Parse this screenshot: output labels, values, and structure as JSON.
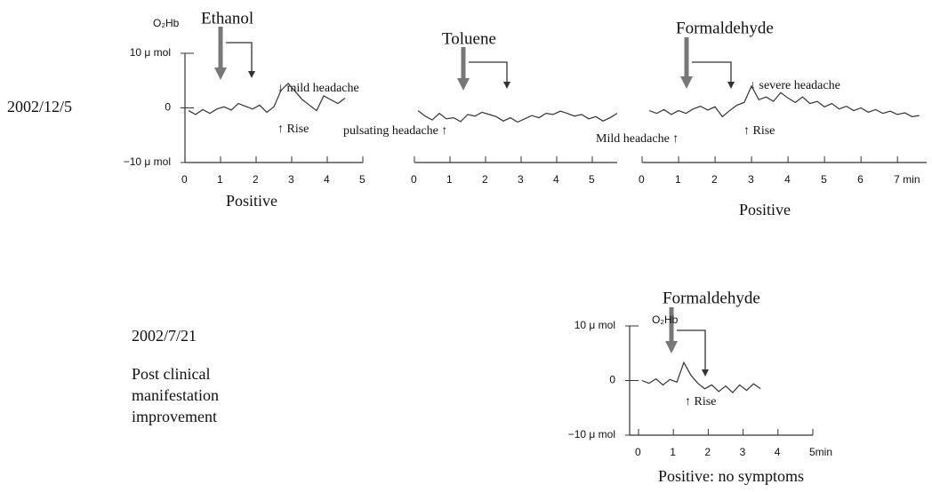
{
  "chart_data": [
    {
      "type": "line",
      "title": "Ethanol",
      "y_label": "O₂Hb",
      "xlabel": "Positive",
      "annotations": [
        "↓ mild headache",
        "↑ Rise"
      ],
      "color": "#333333",
      "x": [
        0.1,
        0.3,
        0.5,
        0.7,
        0.9,
        1.1,
        1.3,
        1.5,
        1.7,
        1.9,
        2.1,
        2.3,
        2.5,
        2.7,
        2.9,
        3.1,
        3.3,
        3.5,
        3.7,
        3.9,
        4.1,
        4.3,
        4.5
      ],
      "values": [
        -0.5,
        -1.2,
        -0.3,
        -1,
        -0.2,
        0.2,
        -0.4,
        0.8,
        0.3,
        -0.2,
        0.5,
        -0.8,
        0.2,
        3.2,
        4.5,
        3,
        1.5,
        0.5,
        -0.5,
        2.2,
        1.5,
        0.8,
        1.8
      ],
      "xlim": [
        0,
        5
      ],
      "xticks": [
        0,
        1,
        2,
        3,
        4,
        5
      ],
      "ylim": [
        -10,
        10
      ],
      "yticks": [
        {
          "value": 10,
          "label": "10 μ mol"
        },
        0,
        {
          "value": -10,
          "label": "−10 μ mol"
        }
      ]
    },
    {
      "type": "line",
      "title": "Toluene",
      "annotations": [
        "pulsating headache ↑"
      ],
      "color": "#333333",
      "x": [
        0.1,
        0.3,
        0.5,
        0.7,
        0.9,
        1.1,
        1.3,
        1.5,
        1.7,
        1.9,
        2.1,
        2.3,
        2.5,
        2.7,
        2.9,
        3.1,
        3.3,
        3.5,
        3.7,
        3.9,
        4.1,
        4.3,
        4.5,
        4.7,
        4.9,
        5.1,
        5.3,
        5.5,
        5.7
      ],
      "values": [
        -0.5,
        -1.5,
        -2.2,
        -1,
        -2,
        -1.8,
        -2.5,
        -1.2,
        -1.5,
        -0.8,
        -1.2,
        -1.6,
        -2.4,
        -1.8,
        -2.6,
        -2,
        -1.4,
        -1.8,
        -1,
        -1.2,
        -0.6,
        -1,
        -1.5,
        -1.2,
        -2,
        -1.6,
        -2.4,
        -1.8,
        -1
      ],
      "xlim": [
        0,
        5.7
      ],
      "xticks": [
        0,
        1,
        2,
        3,
        4,
        5
      ],
      "ylim": [
        -10,
        10
      ]
    },
    {
      "type": "line",
      "title": "Formaldehyde",
      "xlabel": "Positive",
      "annotations": [
        "↓ severe headache",
        "Mild headache ↑",
        "↑ Rise"
      ],
      "color": "#333333",
      "x": [
        0.2,
        0.4,
        0.6,
        0.8,
        1.0,
        1.2,
        1.4,
        1.6,
        1.8,
        2.0,
        2.2,
        2.4,
        2.6,
        2.8,
        3.0,
        3.2,
        3.4,
        3.6,
        3.8,
        4.0,
        4.2,
        4.4,
        4.6,
        4.8,
        5.0,
        5.2,
        5.4,
        5.6,
        5.8,
        6.0,
        6.2,
        6.4,
        6.6,
        6.8,
        7.0,
        7.2,
        7.4,
        7.6
      ],
      "values": [
        -0.5,
        -1,
        -0.3,
        -1.2,
        -0.5,
        -1,
        -0.2,
        0.3,
        -0.4,
        0.2,
        -1.6,
        -0.5,
        0.5,
        1,
        4,
        1.5,
        2,
        1.2,
        2.8,
        1.8,
        1,
        2,
        0.8,
        1.2,
        0.2,
        0.8,
        -0.2,
        0.3,
        -0.5,
        0,
        -0.8,
        -0.3,
        -1,
        -0.6,
        -1.2,
        -0.9,
        -1.6,
        -1.4
      ],
      "xlim": [
        0,
        7.8
      ],
      "xticks": [
        0,
        1,
        2,
        3,
        4,
        5,
        6,
        {
          "value": 7,
          "label": "7 min"
        }
      ],
      "ylim": [
        -10,
        10
      ]
    },
    {
      "type": "line",
      "title": "Formaldehyde",
      "y_label": "O₂Hb",
      "xlabel": "Positive: no symptoms",
      "annotations": [
        "↑ Rise"
      ],
      "color": "#333333",
      "x": [
        0.1,
        0.3,
        0.5,
        0.7,
        0.9,
        1.1,
        1.3,
        1.5,
        1.7,
        1.9,
        2.1,
        2.3,
        2.5,
        2.7,
        2.9,
        3.1,
        3.3,
        3.5
      ],
      "values": [
        0,
        -0.5,
        0.3,
        -0.8,
        0.2,
        -0.3,
        3.3,
        1,
        -0.5,
        -1.5,
        -0.8,
        -2,
        -1,
        -2.2,
        -0.8,
        -1.8,
        -0.6,
        -1.5
      ],
      "xlim": [
        0,
        5
      ],
      "xticks": [
        0,
        1,
        2,
        3,
        4,
        {
          "value": 5,
          "label": "5min"
        }
      ],
      "ylim": [
        -10,
        10
      ],
      "yticks": [
        {
          "value": 10,
          "label": "10 μ mol"
        },
        0,
        {
          "value": -10,
          "label": "−10 μ mol"
        }
      ]
    }
  ],
  "labels": {
    "date_1": "2002/12/5",
    "date_2": "2002/7/21",
    "note": [
      "Post clinical",
      "manifestation",
      "improvement"
    ]
  }
}
